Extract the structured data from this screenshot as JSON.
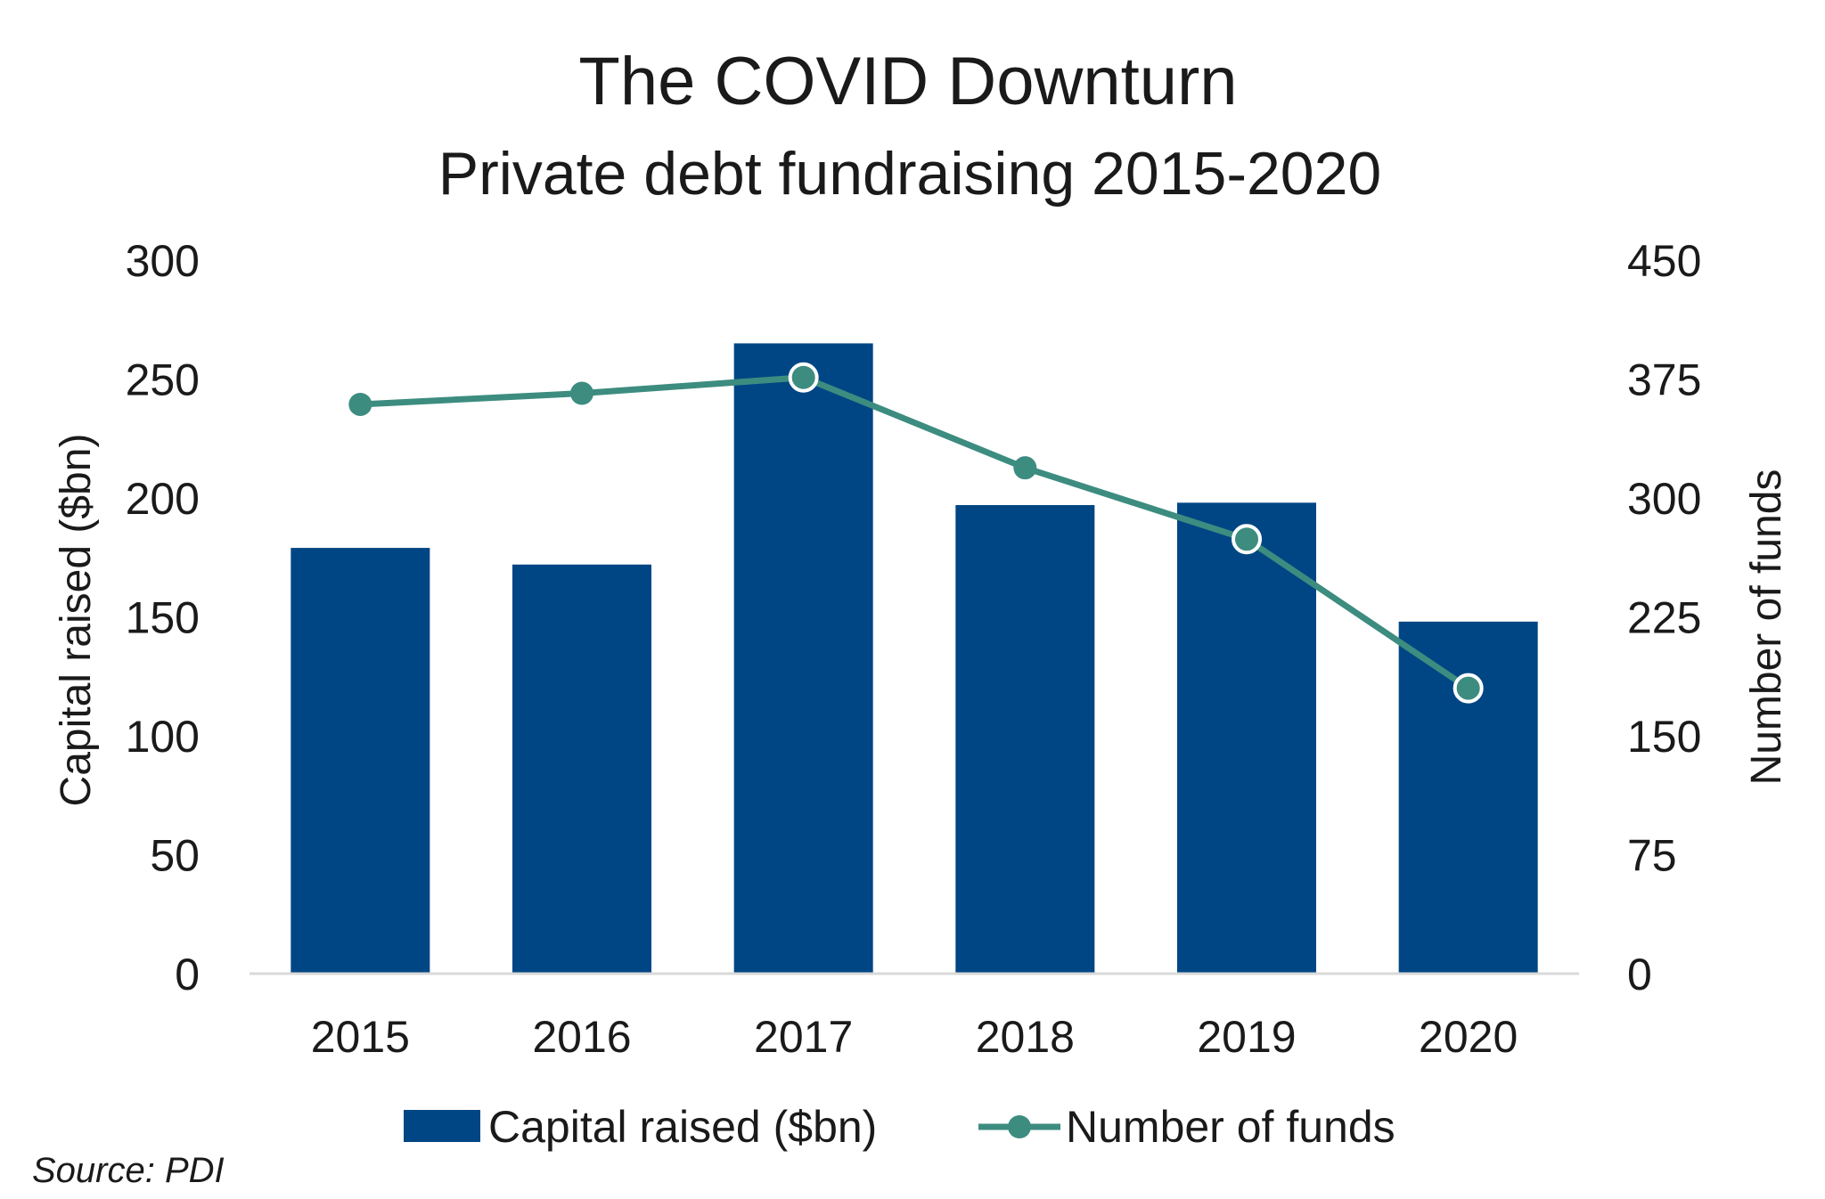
{
  "chart_data": {
    "type": "bar",
    "title": "The COVID Downturn",
    "subtitle": "Private debt fundraising 2015-2020",
    "categories": [
      "2015",
      "2016",
      "2017",
      "2018",
      "2019",
      "2020"
    ],
    "series": [
      {
        "name": "Capital raised ($bn)",
        "type": "bar",
        "axis": "left",
        "color": "#004684",
        "values": [
          179,
          172,
          265,
          197,
          198,
          148
        ]
      },
      {
        "name": "Number of funds",
        "type": "line",
        "axis": "right",
        "color": "#3d8c80",
        "values": [
          359,
          366,
          376,
          319,
          274,
          180
        ]
      }
    ],
    "ylabel": "Capital raised ($bn)",
    "y2label": "Number of funds",
    "ylim": [
      0,
      300
    ],
    "y2lim": [
      0,
      450
    ],
    "yticks": [
      "0",
      "50",
      "100",
      "150",
      "200",
      "250",
      "300"
    ],
    "y2ticks": [
      "0",
      "75",
      "150",
      "225",
      "300",
      "375",
      "450"
    ],
    "grid": false,
    "legend": "bottom",
    "source": "Source: PDI"
  }
}
